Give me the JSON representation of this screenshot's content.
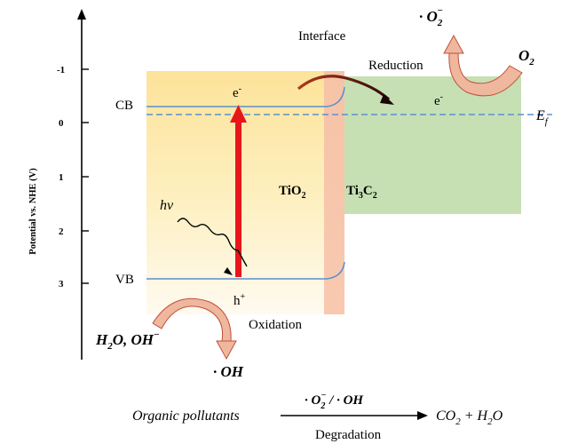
{
  "axis": {
    "ylabel": "Potential vs. NHE (V)",
    "ticks": [
      "-1",
      "0",
      "1",
      "2",
      "3"
    ]
  },
  "bands": {
    "cb": "CB",
    "vb": "VB",
    "electron_tio2": "e",
    "electron_ti3c2": "e",
    "electron_sup": "-",
    "hole": "h",
    "hole_sup": "+",
    "fermi": "E",
    "fermi_sub": "f"
  },
  "labels": {
    "interface": "Interface",
    "reduction": "Reduction",
    "oxidation": "Oxidation",
    "hv": "hν",
    "tio2": "TiO",
    "tio2_sub": "2",
    "ti3c2_a": "Ti",
    "ti3c2_sub1": "3",
    "ti3c2_b": "C",
    "ti3c2_sub2": "2"
  },
  "species": {
    "superoxide": "· O",
    "superoxide_sub": "2",
    "superoxide_sup": "−",
    "oxygen": "O",
    "oxygen_sub": "2",
    "reactants": "H",
    "reactants_sub": "2",
    "reactants_rest": "O, OH",
    "reactants_sup": "−",
    "hydroxyl": "· OH"
  },
  "reaction": {
    "left": "Organic pollutants",
    "over_a": "· O",
    "over_sub": "2",
    "over_sup": "−",
    "over_b": " / · OH",
    "right_a": "CO",
    "right_sub": "2",
    "right_b": " + H",
    "right_sub2": "2",
    "right_c": "O",
    "under": "Degradation"
  },
  "colors": {
    "tio2_fill": "#fde9a6",
    "interface_fill": "#f4c2a4",
    "ti3c2_fill": "#c6e0b4",
    "band_line": "#5b8fd0",
    "excitation_arrow": "#e8161a",
    "process_arrow": "#e8a88a"
  }
}
